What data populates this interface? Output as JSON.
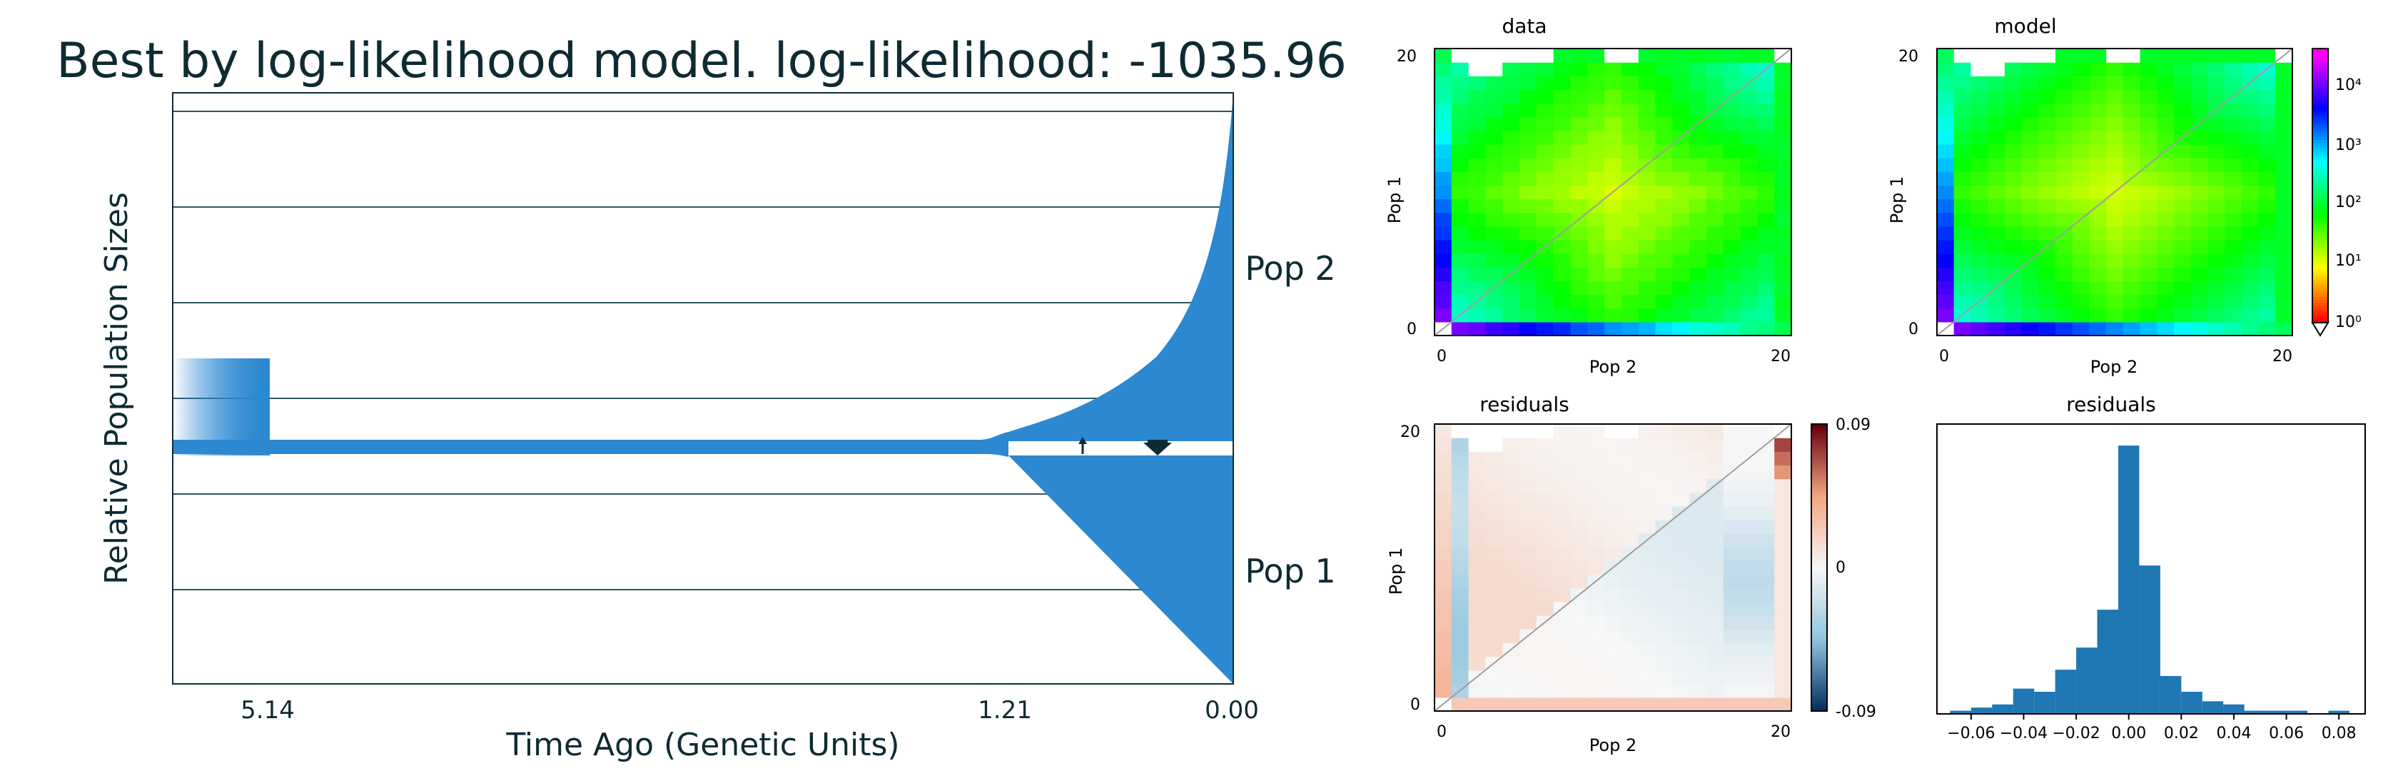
{
  "chart_data": [
    {
      "type": "area",
      "title": "Best by log-likelihood model. log-likelihood: -1035.96",
      "xlabel": "Time Ago (Genetic Units)",
      "ylabel": "Relative Population Sizes",
      "x_ticks": [
        "5.14",
        "1.21",
        "0.00"
      ],
      "population_labels": [
        "Pop 2",
        "Pop 1"
      ],
      "color": "#2b88d1",
      "split_time": 1.21,
      "ancestral_time": 5.14,
      "grid": true
    },
    {
      "type": "heatmap",
      "title": "data",
      "xlabel": "Pop 2",
      "ylabel": "Pop 1",
      "x_ticks": [
        "0",
        "20"
      ],
      "y_ticks": [
        "0",
        "20"
      ],
      "grid_size": 21
    },
    {
      "type": "heatmap",
      "title": "model",
      "xlabel": "Pop 2",
      "ylabel": "Pop 1",
      "x_ticks": [
        "0",
        "20"
      ],
      "y_ticks": [
        "0",
        "20"
      ],
      "grid_size": 21,
      "colorbar_ticks": [
        "10⁴",
        "10³",
        "10²",
        "10¹",
        "10⁰"
      ],
      "colorbar_scale": "log"
    },
    {
      "type": "heatmap",
      "title": "residuals",
      "xlabel": "Pop 2",
      "ylabel": "Pop 1",
      "x_ticks": [
        "0",
        "20"
      ],
      "y_ticks": [
        "0",
        "20"
      ],
      "grid_size": 21,
      "colorbar_ticks": [
        "0.09",
        "0",
        "-0.09"
      ],
      "colorbar_range": [
        -0.09,
        0.09
      ]
    },
    {
      "type": "bar",
      "title": "residuals",
      "x_ticks": [
        "−0.06",
        "−0.04",
        "−0.02",
        "0.00",
        "0.02",
        "0.04",
        "0.06",
        "0.08"
      ],
      "xlim": [
        -0.073,
        0.09
      ],
      "bin_width": 0.008,
      "bin_starts": [
        -0.068,
        -0.06,
        -0.052,
        -0.044,
        -0.036,
        -0.028,
        -0.02,
        -0.012,
        -0.004,
        0.004,
        0.012,
        0.02,
        0.028,
        0.036,
        0.044,
        0.052,
        0.06,
        0.068,
        0.076,
        0.084
      ],
      "counts": [
        1,
        2,
        3,
        8,
        7,
        14,
        21,
        33,
        85,
        47,
        12,
        7,
        4,
        3,
        1,
        1,
        1,
        0,
        1,
        0
      ],
      "ylim": [
        0,
        90
      ]
    }
  ]
}
